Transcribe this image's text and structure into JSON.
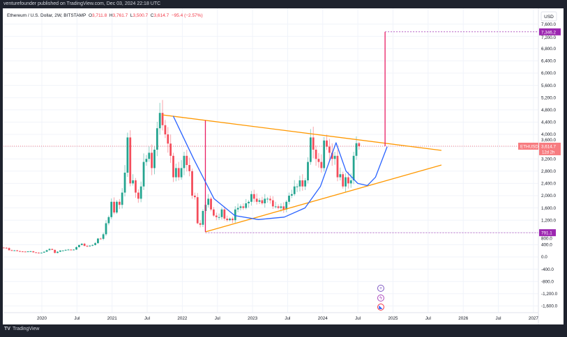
{
  "header": {
    "publisher_line": "venturefounder published on TradingView.com, Dec 03, 2024 22:18 UTC"
  },
  "legend": {
    "symbol": "Ethereum / U.S. Dollar, 2W, BITSTAMP",
    "o_label": "O",
    "o": "3,711.8",
    "h_label": "H",
    "h": "3,761.7",
    "l_label": "L",
    "l": "3,500.7",
    "c_label": "C",
    "c": "3,614.7",
    "change": "−95.4 (−2.57%)"
  },
  "price_axis": {
    "currency": "USD",
    "ticks": [
      "7,600.0",
      "7,200.0",
      "6,800.0",
      "6,400.0",
      "6,000.0",
      "5,600.0",
      "5,200.0",
      "4,800.0",
      "4,400.0",
      "4,000.0",
      "3,600.0",
      "3,200.0",
      "2,800.0",
      "2,400.0",
      "2,000.0",
      "1,600.0",
      "1,200.0",
      "800.0",
      "400.0",
      "0.0",
      "-400.0",
      "-800.0",
      "-1,200.0",
      "-1,600.0"
    ],
    "labels": {
      "target": "7,346.2",
      "bottom": "791.1",
      "last_symbol": "ETHUSD",
      "last_price": "3,614.7",
      "countdown": "12d 2h"
    }
  },
  "time_axis": {
    "ticks": [
      "2020",
      "Jul",
      "2021",
      "Jul",
      "2022",
      "Jul",
      "2023",
      "Jul",
      "2024",
      "Jul",
      "2025",
      "Jul",
      "2026",
      "Jul",
      "2027"
    ]
  },
  "colors": {
    "up": "#089981",
    "down": "#f23645",
    "triangle": "#ff9800",
    "curve": "#2962ff",
    "measure": "#e91e63",
    "level": "#9c27b0"
  },
  "icons": [
    "plus-icon",
    "lightning-icon",
    "flag-icon"
  ],
  "footer": {
    "brand": "TradingView"
  },
  "chart_data": {
    "type": "candlestick",
    "symbol": "ETHUSD",
    "interval": "2W",
    "exchange": "BITSTAMP",
    "start": "2019-06-17",
    "closes": [
      300,
      290,
      220,
      210,
      215,
      190,
      180,
      175,
      170,
      180,
      185,
      150,
      140,
      130,
      140,
      170,
      220,
      260,
      230,
      130,
      170,
      210,
      210,
      230,
      240,
      230,
      240,
      320,
      390,
      430,
      360,
      350,
      370,
      390,
      450,
      600,
      590,
      740,
      1100,
      1300,
      1800,
      1450,
      1800,
      1700,
      2100,
      2750,
      3900,
      2400,
      2500,
      2100,
      1900,
      2300,
      3100,
      3200,
      3400,
      2900,
      3500,
      4200,
      4700,
      4300,
      4000,
      3700,
      3300,
      2600,
      2900,
      2600,
      2900,
      3300,
      3000,
      2800,
      2000,
      1950,
      1100,
      1050,
      1500,
      1700,
      1900,
      1550,
      1350,
      1300,
      1300,
      1550,
      1250,
      1200,
      1250,
      1200,
      1550,
      1600,
      1650,
      1600,
      1750,
      1800,
      2050,
      1900,
      1800,
      1850,
      1750,
      1900,
      1900,
      1850,
      1650,
      1650,
      1600,
      1650,
      1550,
      1800,
      2000,
      2050,
      2300,
      2300,
      2500,
      2300,
      2500,
      3100,
      3900,
      3500,
      3200,
      3100,
      2900,
      3800,
      3600,
      3400,
      3200,
      3300,
      2600,
      2700,
      2300,
      2600,
      2400,
      2500,
      3300,
      3711.8,
      3614.7
    ],
    "last": {
      "open": 3711.8,
      "high": 3761.7,
      "low": 3500.7,
      "close": 3614.7,
      "change": -95.4,
      "change_pct": -2.57
    },
    "drawings": {
      "triangle_upper": [
        [
          "2021-09-20",
          4636
        ],
        [
          "2025-09-10",
          3477
        ]
      ],
      "triangle_lower": [
        [
          "2022-05-01",
          818
        ],
        [
          "2025-09-10",
          3000
        ]
      ],
      "measure_1": [
        [
          "2022-05-01",
          4455
        ],
        [
          "2022-05-01",
          818
        ]
      ],
      "measure_2": [
        [
          "2024-11-20",
          3614.7
        ],
        [
          "2024-11-20",
          7346.2
        ]
      ],
      "levels": [
        7346.2,
        791.1
      ],
      "curve": [
        [
          "2021-11-15",
          4600
        ],
        [
          "2022-03-01",
          3200
        ],
        [
          "2022-06-15",
          1900
        ],
        [
          "2022-10-01",
          1350
        ],
        [
          "2023-02-01",
          1220
        ],
        [
          "2023-06-15",
          1300
        ],
        [
          "2023-10-01",
          1600
        ],
        [
          "2023-12-20",
          2300
        ],
        [
          "2024-03-10",
          3727
        ],
        [
          "2024-05-01",
          2800
        ],
        [
          "2024-07-01",
          2400
        ],
        [
          "2024-08-20",
          2330
        ],
        [
          "2024-10-01",
          2600
        ],
        [
          "2024-12-01",
          3600
        ]
      ]
    },
    "ylim": [
      -1800,
      7800
    ],
    "xlim": [
      "2019-06-15",
      "2027-04-01"
    ],
    "grid": true
  }
}
